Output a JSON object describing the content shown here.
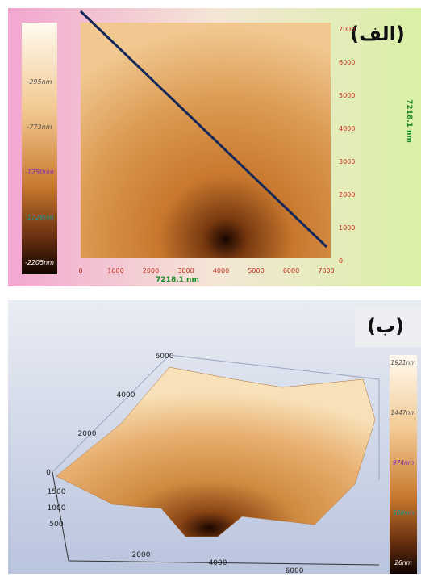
{
  "panel_a": {
    "label": "(الف)",
    "colorbar": [
      "-295nm",
      "-773nm",
      "-1250nm",
      "-1728nm",
      "-2205nm"
    ],
    "x_ticks": [
      "0",
      "1000",
      "2000",
      "3000",
      "4000",
      "5000",
      "6000",
      "7000"
    ],
    "x_label": "7218.1 nm",
    "y_ticks": [
      "0",
      "1000",
      "2000",
      "3000",
      "4000",
      "5000",
      "6000",
      "7000"
    ],
    "y_label": "7218.1 nm"
  },
  "panel_b": {
    "label": "(ب)",
    "back_ticks": [
      "0",
      "2000",
      "4000",
      "6000"
    ],
    "z_ticks": [
      "1500",
      "1000",
      "500"
    ],
    "front_ticks": [
      "2000",
      "4000",
      "6000"
    ],
    "colorbar": [
      "1921nm",
      "1447nm",
      "974nm",
      "500nm",
      "26nm"
    ]
  }
}
